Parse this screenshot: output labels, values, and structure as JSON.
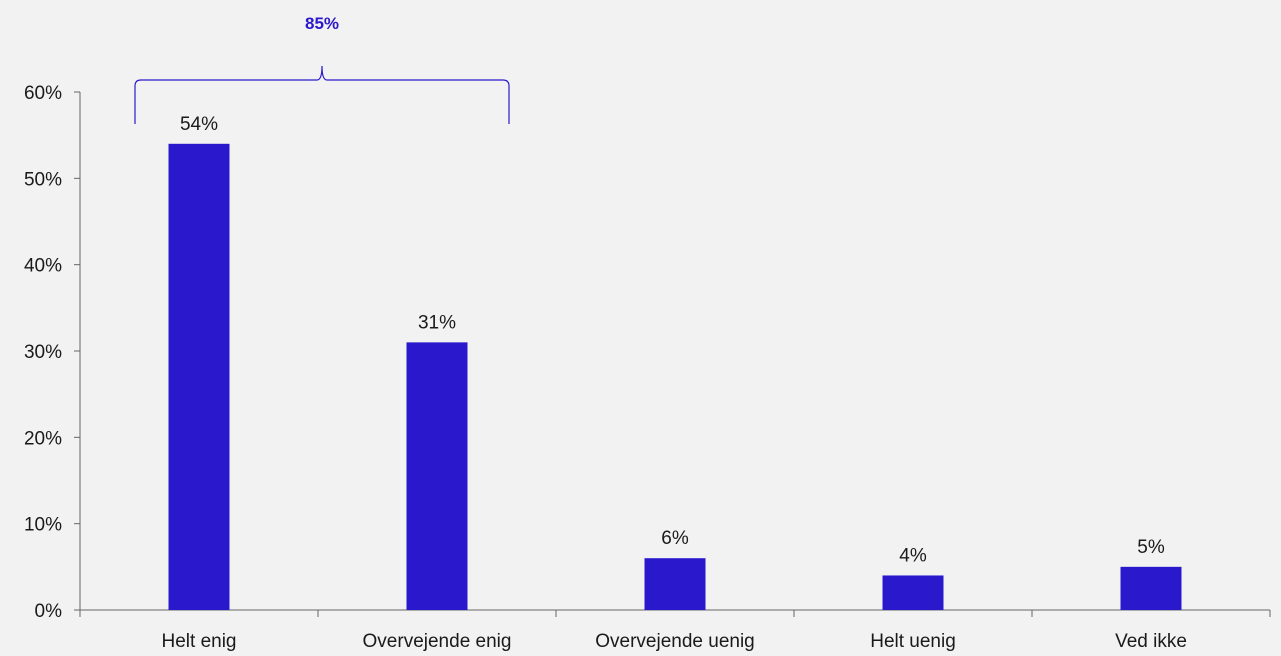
{
  "chart_data": {
    "type": "bar",
    "categories": [
      "Helt enig",
      "Overvejende enig",
      "Overvejende uenig",
      "Helt uenig",
      "Ved ikke"
    ],
    "values": [
      54,
      31,
      6,
      4,
      5
    ],
    "data_labels": [
      "54%",
      "31%",
      "6%",
      "4%",
      "5%"
    ],
    "ylim": [
      0,
      60
    ],
    "yticks": [
      0,
      10,
      20,
      30,
      40,
      50,
      60
    ],
    "ytick_labels": [
      "0%",
      "10%",
      "20%",
      "30%",
      "40%",
      "50%",
      "60%"
    ],
    "grid": false,
    "bracket": {
      "label": "85%",
      "spans_categories": [
        "Helt enig",
        "Overvejende enig"
      ]
    },
    "bar_color": "#2a19cc",
    "axis_color": "#666666",
    "bracket_color": "#2a19cc"
  }
}
